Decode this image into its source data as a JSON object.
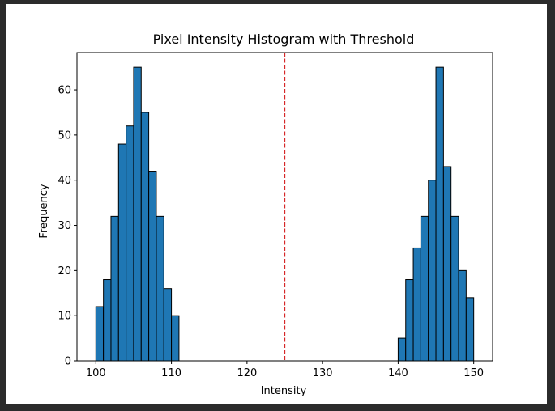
{
  "chart_data": {
    "type": "bar",
    "title": "Pixel Intensity Histogram with Threshold",
    "xlabel": "Intensity",
    "ylabel": "Frequency",
    "xlim": [
      97.5,
      152.5
    ],
    "ylim": [
      0,
      68.25
    ],
    "xticks": [
      100,
      110,
      120,
      130,
      140,
      150
    ],
    "yticks": [
      0,
      10,
      20,
      30,
      40,
      50,
      60
    ],
    "grid": false,
    "bar_color": "#1f77b4",
    "edge_color": "#000000",
    "threshold_color": "#d62728",
    "threshold": 125,
    "bin_width": 1,
    "bins": [
      {
        "x0": 100,
        "count": 12
      },
      {
        "x0": 101,
        "count": 18
      },
      {
        "x0": 102,
        "count": 32
      },
      {
        "x0": 103,
        "count": 48
      },
      {
        "x0": 104,
        "count": 52
      },
      {
        "x0": 105,
        "count": 65
      },
      {
        "x0": 106,
        "count": 55
      },
      {
        "x0": 107,
        "count": 42
      },
      {
        "x0": 108,
        "count": 32
      },
      {
        "x0": 109,
        "count": 16
      },
      {
        "x0": 110,
        "count": 10
      },
      {
        "x0": 140,
        "count": 5
      },
      {
        "x0": 141,
        "count": 18
      },
      {
        "x0": 142,
        "count": 25
      },
      {
        "x0": 143,
        "count": 32
      },
      {
        "x0": 144,
        "count": 40
      },
      {
        "x0": 145,
        "count": 65
      },
      {
        "x0": 146,
        "count": 43
      },
      {
        "x0": 147,
        "count": 32
      },
      {
        "x0": 148,
        "count": 20
      },
      {
        "x0": 149,
        "count": 14
      }
    ]
  }
}
